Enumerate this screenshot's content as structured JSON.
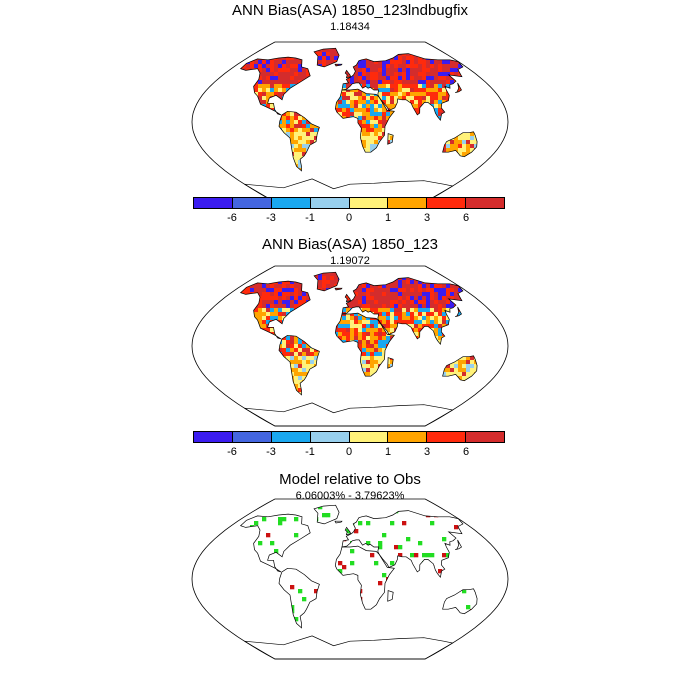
{
  "panels": [
    {
      "title": "ANN Bias(ASA) 1850_123lndbugfix",
      "subtitle": "1.18434",
      "variant": "bias",
      "seed": 11
    },
    {
      "title": "ANN Bias(ASA) 1850_123",
      "subtitle": "1.19072",
      "variant": "bias",
      "seed": 29
    },
    {
      "title": "Model relative to Obs",
      "subtitle": "6.06003% - 3.79623%",
      "variant": "relative",
      "seed": 47
    }
  ],
  "colorbar": {
    "colors": [
      "#3b1cf0",
      "#4466e0",
      "#1aa8f0",
      "#98d0ee",
      "#fff27a",
      "#ffa400",
      "#ff2a0c",
      "#d42c2c"
    ],
    "labels": [
      "-6",
      "-3",
      "-1",
      "0",
      "1",
      "3",
      "6"
    ]
  },
  "relative_colors": {
    "better": "#22dd22",
    "worse": "#cc1111"
  }
}
